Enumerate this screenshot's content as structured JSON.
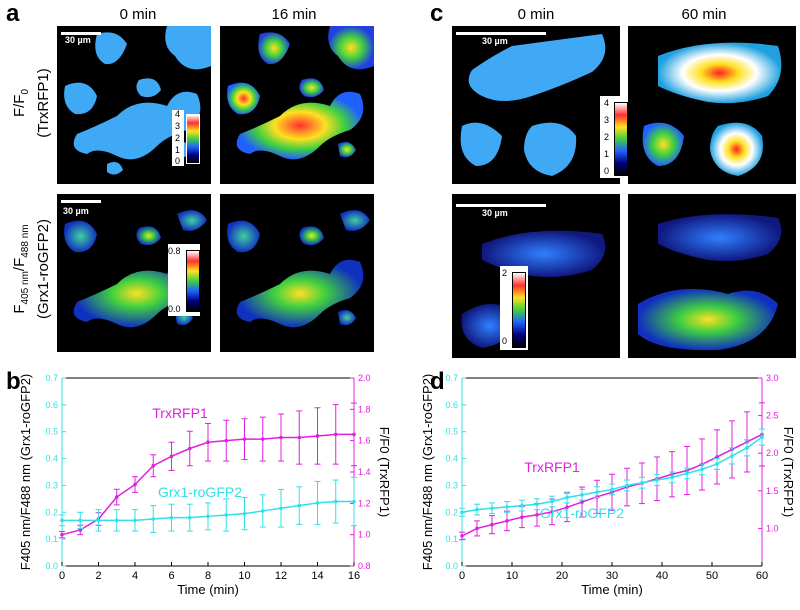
{
  "panels": {
    "a": {
      "label": "a",
      "col1": "0 min",
      "col2": "16 min",
      "scale_bar": "30 µm",
      "row1_label": "F/F",
      "row1_sub": "0",
      "row1_paren": "(TrxRFP1)",
      "row2_label_main": "F",
      "row2_label_sub1": "405 nm",
      "row2_label_mid": "/F",
      "row2_label_sub2": "488 nm",
      "row2_paren": "(Grx1-roGFP2)",
      "cbar1_ticks": [
        "4",
        "3",
        "2",
        "1",
        "0"
      ],
      "cbar2_ticks": [
        "0.8",
        "0.0"
      ]
    },
    "c": {
      "label": "c",
      "col1": "0 min",
      "col2": "60 min",
      "scale_bar": "30 µm",
      "cbar1_ticks": [
        "4",
        "3",
        "2",
        "1",
        "0"
      ],
      "cbar2_ticks": [
        "2",
        "0"
      ]
    },
    "b": {
      "label": "b"
    },
    "d": {
      "label": "d"
    }
  },
  "chart_data": [
    {
      "type": "line",
      "id": "b",
      "xlabel": "Time (min)",
      "ylabel_left": "F405 nm/F488 nm (Grx1-roGFP2)",
      "ylabel_right": "F/F0 (TrxRFP1)",
      "xlim": [
        0,
        16
      ],
      "xticks": [
        "0",
        "2",
        "4",
        "6",
        "8",
        "10",
        "12",
        "14",
        "16"
      ],
      "ylim_left": [
        0,
        0.7
      ],
      "yticks_left": [
        "0.0",
        "0.1",
        "0.2",
        "0.3",
        "0.4",
        "0.5",
        "0.6",
        "0.7"
      ],
      "ylim_right": [
        0.8,
        2.0
      ],
      "yticks_right": [
        "0.8",
        "1.0",
        "1.2",
        "1.4",
        "1.6",
        "1.8",
        "2.0"
      ],
      "series": [
        {
          "name": "TrxRFP1",
          "axis": "right",
          "color": "#e020e0",
          "x": [
            0,
            1,
            2,
            3,
            4,
            5,
            6,
            7,
            8,
            9,
            10,
            11,
            12,
            13,
            14,
            15,
            16
          ],
          "values": [
            1.0,
            1.03,
            1.1,
            1.24,
            1.32,
            1.44,
            1.5,
            1.55,
            1.59,
            1.6,
            1.61,
            1.61,
            1.62,
            1.62,
            1.63,
            1.64,
            1.64
          ],
          "err": [
            0.02,
            0.03,
            0.04,
            0.05,
            0.05,
            0.07,
            0.09,
            0.11,
            0.12,
            0.13,
            0.13,
            0.14,
            0.15,
            0.17,
            0.18,
            0.19,
            0.2
          ]
        },
        {
          "name": "Grx1-roGFP2",
          "axis": "left",
          "color": "#30e0e8",
          "x": [
            0,
            1,
            2,
            3,
            4,
            5,
            6,
            7,
            8,
            9,
            10,
            11,
            12,
            13,
            14,
            15,
            16
          ],
          "values": [
            0.17,
            0.17,
            0.17,
            0.17,
            0.17,
            0.175,
            0.18,
            0.18,
            0.185,
            0.19,
            0.195,
            0.205,
            0.215,
            0.225,
            0.235,
            0.24,
            0.24
          ],
          "err": [
            0.02,
            0.03,
            0.04,
            0.04,
            0.04,
            0.05,
            0.05,
            0.05,
            0.05,
            0.06,
            0.06,
            0.06,
            0.07,
            0.07,
            0.08,
            0.08,
            0.09
          ]
        }
      ]
    },
    {
      "type": "line",
      "id": "d",
      "xlabel": "Time (min)",
      "ylabel_left": "F405 nm/F488 nm (Grx1-roGFP2)",
      "ylabel_right": "F/F0 (TrxRFP1)",
      "xlim": [
        0,
        60
      ],
      "xticks": [
        "0",
        "10",
        "20",
        "30",
        "40",
        "50",
        "60"
      ],
      "ylim_left": [
        0,
        0.7
      ],
      "yticks_left": [
        "0.0",
        "0.1",
        "0.2",
        "0.3",
        "0.4",
        "0.5",
        "0.6",
        "0.7"
      ],
      "ylim_right": [
        0.5,
        3.0
      ],
      "yticks_right": [
        "1.0",
        "1.5",
        "2.0",
        "2.5",
        "3.0"
      ],
      "series": [
        {
          "name": "TrxRFP1",
          "axis": "right",
          "color": "#e020e0",
          "x": [
            0,
            3,
            6,
            9,
            12,
            15,
            18,
            21,
            24,
            27,
            30,
            33,
            36,
            39,
            42,
            45,
            48,
            51,
            54,
            57,
            60
          ],
          "values": [
            0.9,
            1.0,
            1.05,
            1.1,
            1.15,
            1.18,
            1.22,
            1.28,
            1.35,
            1.42,
            1.48,
            1.55,
            1.6,
            1.66,
            1.72,
            1.77,
            1.85,
            1.95,
            2.05,
            2.15,
            2.25
          ],
          "err": [
            0.05,
            0.1,
            0.12,
            0.13,
            0.14,
            0.15,
            0.17,
            0.19,
            0.2,
            0.22,
            0.24,
            0.25,
            0.27,
            0.29,
            0.3,
            0.32,
            0.34,
            0.36,
            0.38,
            0.4,
            0.42
          ]
        },
        {
          "name": "Grx1-roGFP2",
          "axis": "left",
          "color": "#30e0e8",
          "x": [
            0,
            3,
            6,
            9,
            12,
            15,
            18,
            21,
            24,
            27,
            30,
            33,
            36,
            39,
            42,
            45,
            48,
            51,
            54,
            57,
            60
          ],
          "values": [
            0.2,
            0.21,
            0.215,
            0.22,
            0.225,
            0.23,
            0.24,
            0.255,
            0.265,
            0.275,
            0.285,
            0.3,
            0.31,
            0.32,
            0.33,
            0.345,
            0.36,
            0.38,
            0.41,
            0.44,
            0.48
          ],
          "err": [
            0.015,
            0.02,
            0.02,
            0.02,
            0.02,
            0.02,
            0.02,
            0.02,
            0.02,
            0.02,
            0.02,
            0.02,
            0.02,
            0.02,
            0.02,
            0.02,
            0.02,
            0.02,
            0.03,
            0.03,
            0.03
          ]
        }
      ]
    }
  ],
  "colors": {
    "magenta": "#e020e0",
    "cyan": "#30e0e8",
    "cellblue": "#3fa9f5"
  }
}
